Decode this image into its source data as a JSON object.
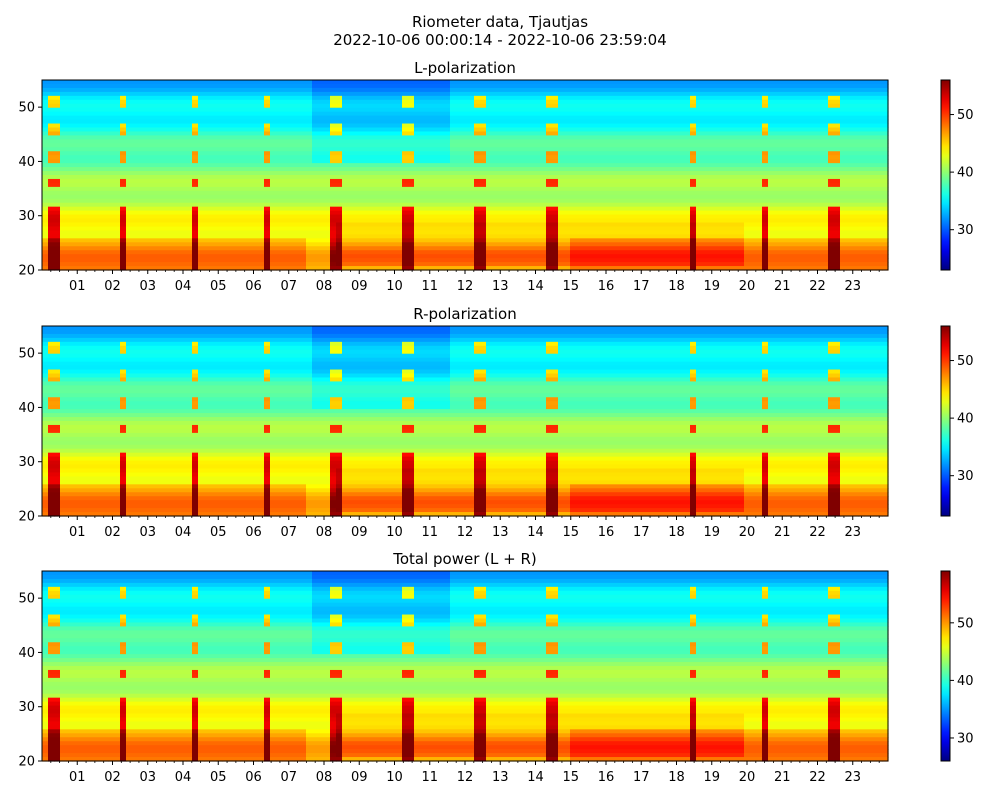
{
  "title": "Riometer data, Tjautjas",
  "subtitle": "2022-10-06 00:00:14 - 2022-10-06 23:59:04",
  "colormap": "jet",
  "chart_data": [
    {
      "type": "heatmap",
      "title": "L-polarization",
      "xlim": [
        "00:00",
        "24:00"
      ],
      "ylim": [
        20,
        55
      ],
      "xticks": [
        "01",
        "02",
        "03",
        "04",
        "05",
        "06",
        "07",
        "08",
        "09",
        "10",
        "11",
        "12",
        "13",
        "14",
        "15",
        "16",
        "17",
        "18",
        "19",
        "20",
        "21",
        "22",
        "23"
      ],
      "yticks": [
        20,
        30,
        40,
        50
      ],
      "colorbar": {
        "min": 23,
        "max": 56,
        "ticks": [
          30,
          40,
          50
        ]
      },
      "vertical_spikes_hours": [
        0.33,
        2.33,
        4.35,
        6.37,
        8.37,
        10.37,
        12.43,
        14.45,
        18.47,
        20.5,
        22.5
      ],
      "event_region": {
        "x_hours": [
          8.3,
          20.0
        ],
        "y": [
          21,
          29
        ]
      }
    },
    {
      "type": "heatmap",
      "title": "R-polarization",
      "xlim": [
        "00:00",
        "24:00"
      ],
      "ylim": [
        20,
        55
      ],
      "xticks": [
        "01",
        "02",
        "03",
        "04",
        "05",
        "06",
        "07",
        "08",
        "09",
        "10",
        "11",
        "12",
        "13",
        "14",
        "15",
        "16",
        "17",
        "18",
        "19",
        "20",
        "21",
        "22",
        "23"
      ],
      "yticks": [
        20,
        30,
        40,
        50
      ],
      "colorbar": {
        "min": 23,
        "max": 56,
        "ticks": [
          30,
          40,
          50
        ]
      },
      "vertical_spikes_hours": [
        0.33,
        2.33,
        4.35,
        6.37,
        8.37,
        10.37,
        12.43,
        14.45,
        18.47,
        20.5,
        22.5
      ],
      "event_region": {
        "x_hours": [
          8.3,
          20.0
        ],
        "y": [
          21,
          29
        ]
      }
    },
    {
      "type": "heatmap",
      "title": "Total power (L + R)",
      "xlim": [
        "00:00",
        "24:00"
      ],
      "ylim": [
        20,
        55
      ],
      "xticks": [
        "01",
        "02",
        "03",
        "04",
        "05",
        "06",
        "07",
        "08",
        "09",
        "10",
        "11",
        "12",
        "13",
        "14",
        "15",
        "16",
        "17",
        "18",
        "19",
        "20",
        "21",
        "22",
        "23"
      ],
      "yticks": [
        20,
        30,
        40,
        50
      ],
      "colorbar": {
        "min": 26,
        "max": 59,
        "ticks": [
          30,
          40,
          50
        ]
      },
      "vertical_spikes_hours": [
        0.33,
        2.33,
        4.35,
        6.37,
        8.37,
        10.37,
        12.43,
        14.45,
        18.47,
        20.5,
        22.5
      ],
      "event_region": {
        "x_hours": [
          8.3,
          20.0
        ],
        "y": [
          21,
          29
        ]
      }
    }
  ]
}
